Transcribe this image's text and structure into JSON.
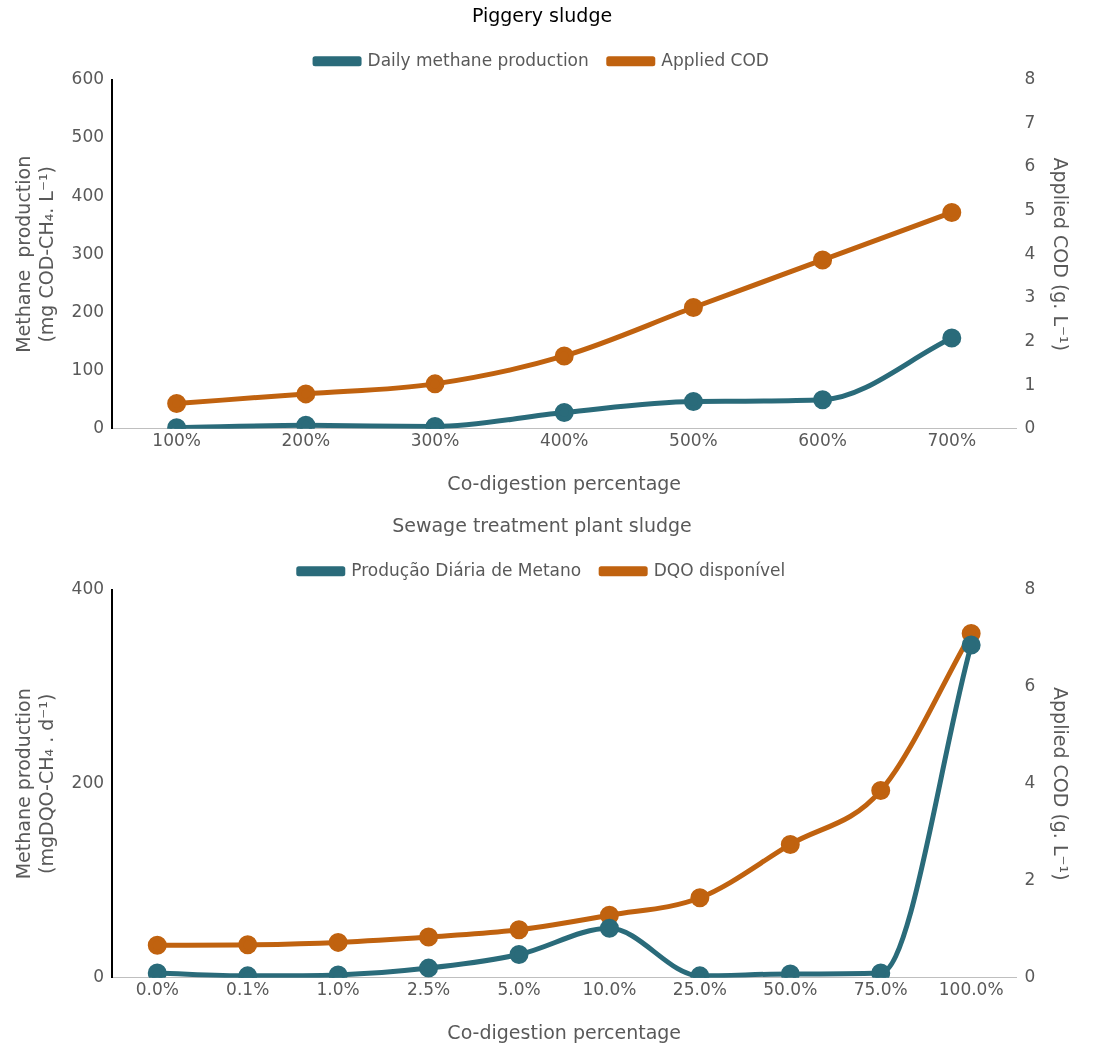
{
  "chart_data": [
    {
      "type": "line",
      "title": "Piggery sludge",
      "xlabel": "Co-digestion percentage",
      "ylabel": "Methane  production\n(mg COD-CH₄. L⁻¹)",
      "y2label": "Applied COD (g. L⁻¹)",
      "categories": [
        "100%",
        "200%",
        "300%",
        "400%",
        "500%",
        "600%",
        "700%"
      ],
      "series": [
        {
          "name": "Daily methane production",
          "color": "#2a6b7a",
          "values": [
            2,
            6,
            4,
            28,
            47,
            50,
            156
          ]
        },
        {
          "name": "Applied COD",
          "color": "#c0620f",
          "axis": "y2",
          "values": [
            0.58,
            0.8,
            1.03,
            1.67,
            2.78,
            3.87,
            4.96
          ]
        }
      ],
      "ylim": [
        0,
        600
      ],
      "yticks": [
        0,
        100,
        200,
        300,
        400,
        500,
        600
      ],
      "y2lim": [
        0,
        8
      ],
      "y2ticks": [
        0,
        1,
        2,
        3,
        4,
        5,
        6,
        7,
        8
      ],
      "grid": false,
      "legend": "top",
      "marker": "circle",
      "line_style": "solid"
    },
    {
      "type": "line",
      "title": "Sewage treatment plant sludge",
      "xlabel": "Co-digestion percentage",
      "ylabel": "Methane production\n(mgDQO-CH₄ . d⁻¹)",
      "y2label": "Applied COD (g. L⁻¹)",
      "categories": [
        "0.0%",
        "0.1%",
        "1.0%",
        "2.5%",
        "5.0%",
        "10.0%",
        "25.0%",
        "50.0%",
        "75.0%",
        "100.0%"
      ],
      "series": [
        {
          "name": "Produção Diária de Metano",
          "color": "#2a6b7a",
          "values": [
            5,
            2,
            3,
            10,
            24,
            51,
            2,
            4,
            5,
            343
          ]
        },
        {
          "name": "DQO disponível",
          "color": "#c0620f",
          "axis": "y2",
          "values": [
            0.67,
            0.68,
            0.73,
            0.84,
            0.99,
            1.29,
            1.65,
            2.75,
            3.86,
            7.1
          ]
        }
      ],
      "ylim": [
        0,
        400
      ],
      "yticks": [
        0,
        200,
        400
      ],
      "y2lim": [
        0,
        8
      ],
      "y2ticks": [
        0,
        2,
        4,
        6,
        8
      ],
      "grid": false,
      "legend": "top",
      "marker": "circle",
      "line_style": "solid"
    }
  ]
}
